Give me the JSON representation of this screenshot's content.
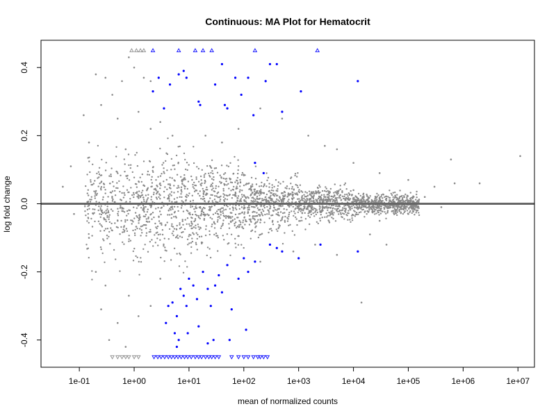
{
  "chart_data": {
    "type": "scatter",
    "title": "Continuous: MA Plot for Hematocrit",
    "xlabel": "mean of normalized counts",
    "ylabel": "log fold change",
    "x_scale": "log10",
    "xlim": [
      0.02,
      20000000
    ],
    "ylim": [
      -0.48,
      0.48
    ],
    "x_ticks": [
      {
        "value": 0.1,
        "label": "1e-01"
      },
      {
        "value": 1,
        "label": "1e+00"
      },
      {
        "value": 10,
        "label": "1e+01"
      },
      {
        "value": 100,
        "label": "1e+02"
      },
      {
        "value": 1000,
        "label": "1e+03"
      },
      {
        "value": 10000,
        "label": "1e+04"
      },
      {
        "value": 100000,
        "label": "1e+05"
      },
      {
        "value": 1000000,
        "label": "1e+06"
      },
      {
        "value": 10000000,
        "label": "1e+07"
      }
    ],
    "y_ticks": [
      {
        "value": 0.4,
        "label": "0.4"
      },
      {
        "value": 0.2,
        "label": "0.2"
      },
      {
        "value": 0.0,
        "label": "0.0"
      },
      {
        "value": -0.2,
        "label": "-0.2"
      },
      {
        "value": -0.4,
        "label": "-0.4"
      }
    ],
    "grid": false,
    "reference_line": {
      "y": 0,
      "color": "#666666"
    },
    "colors": {
      "not_significant": "#888888",
      "significant": "#0000ff"
    },
    "series": [
      {
        "role": "not_significant",
        "color": "#888888",
        "points": [
          [
            0.05,
            0.05
          ],
          [
            0.07,
            0.11
          ],
          [
            0.08,
            -0.03
          ],
          [
            0.12,
            0.26
          ],
          [
            0.15,
            0.18
          ],
          [
            0.2,
            0.38
          ],
          [
            0.25,
            0.29
          ],
          [
            0.3,
            0.37
          ],
          [
            0.4,
            0.32
          ],
          [
            0.5,
            0.25
          ],
          [
            0.6,
            0.36
          ],
          [
            0.8,
            0.43
          ],
          [
            1.0,
            0.4
          ],
          [
            1.5,
            0.37
          ],
          [
            2.0,
            0.36
          ],
          [
            0.15,
            -0.1
          ],
          [
            0.2,
            -0.2
          ],
          [
            0.25,
            -0.31
          ],
          [
            0.3,
            -0.24
          ],
          [
            0.35,
            -0.4
          ],
          [
            0.5,
            -0.35
          ],
          [
            0.7,
            -0.42
          ],
          [
            0.5,
            -0.05
          ],
          [
            0.7,
            0.16
          ],
          [
            1.2,
            0.27
          ],
          [
            2.0,
            0.22
          ],
          [
            3.0,
            0.24
          ],
          [
            5.0,
            0.2
          ],
          [
            0.8,
            -0.27
          ],
          [
            1.2,
            -0.33
          ],
          [
            2.0,
            -0.3
          ],
          [
            3.0,
            -0.22
          ],
          [
            20,
            0.2
          ],
          [
            40,
            0.18
          ],
          [
            80,
            0.22
          ],
          [
            200,
            0.28
          ],
          [
            500,
            0.25
          ],
          [
            1500,
            0.2
          ],
          [
            3000,
            0.17
          ],
          [
            5000,
            0.16
          ],
          [
            10000,
            0.12
          ],
          [
            30000,
            0.09
          ],
          [
            100000,
            0.07
          ],
          [
            300000,
            0.05
          ],
          [
            700000,
            0.06
          ],
          [
            2000000,
            0.06
          ],
          [
            11000000,
            0.14
          ],
          [
            600000,
            0.13
          ],
          [
            20000,
            -0.09
          ],
          [
            40000,
            -0.12
          ],
          [
            14000,
            -0.29
          ],
          [
            5000,
            -0.15
          ],
          [
            2000,
            -0.12
          ],
          [
            800,
            -0.14
          ],
          [
            200,
            -0.17
          ],
          [
            400000,
            -0.01
          ],
          [
            100000,
            -0.03
          ],
          [
            200000,
            0.02
          ],
          [
            30000,
            -0.05
          ],
          [
            10000,
            0.04
          ]
        ]
      },
      {
        "role": "significant",
        "color": "#0000ff",
        "points": [
          [
            2.2,
            0.33
          ],
          [
            2.8,
            0.37
          ],
          [
            3.5,
            0.28
          ],
          [
            4.5,
            0.35
          ],
          [
            6.5,
            0.38
          ],
          [
            8.0,
            0.39
          ],
          [
            9.0,
            0.37
          ],
          [
            15,
            0.3
          ],
          [
            16,
            0.29
          ],
          [
            30,
            0.35
          ],
          [
            40,
            0.41
          ],
          [
            45,
            0.29
          ],
          [
            50,
            0.28
          ],
          [
            70,
            0.37
          ],
          [
            90,
            0.32
          ],
          [
            120,
            0.37
          ],
          [
            150,
            0.26
          ],
          [
            250,
            0.36
          ],
          [
            300,
            0.41
          ],
          [
            400,
            0.41
          ],
          [
            500,
            0.27
          ],
          [
            1100,
            0.33
          ],
          [
            12000,
            0.36
          ],
          [
            160,
            0.12
          ],
          [
            230,
            0.09
          ],
          [
            3.8,
            -0.35
          ],
          [
            4.2,
            -0.3
          ],
          [
            5.0,
            -0.29
          ],
          [
            6.0,
            -0.33
          ],
          [
            7.0,
            -0.25
          ],
          [
            8.0,
            -0.27
          ],
          [
            9.0,
            -0.3
          ],
          [
            10,
            -0.22
          ],
          [
            12,
            -0.24
          ],
          [
            14,
            -0.28
          ],
          [
            18,
            -0.2
          ],
          [
            22,
            -0.25
          ],
          [
            25,
            -0.3
          ],
          [
            30,
            -0.24
          ],
          [
            35,
            -0.21
          ],
          [
            40,
            -0.26
          ],
          [
            50,
            -0.18
          ],
          [
            60,
            -0.31
          ],
          [
            80,
            -0.22
          ],
          [
            100,
            -0.16
          ],
          [
            120,
            -0.2
          ],
          [
            160,
            -0.17
          ],
          [
            300,
            -0.12
          ],
          [
            400,
            -0.13
          ],
          [
            500,
            -0.14
          ],
          [
            1000,
            -0.16
          ],
          [
            2500,
            -0.12
          ],
          [
            12000,
            -0.14
          ],
          [
            5.5,
            -0.38
          ],
          [
            6.5,
            -0.4
          ],
          [
            9.5,
            -0.38
          ],
          [
            15,
            -0.36
          ],
          [
            28,
            -0.4
          ],
          [
            55,
            -0.4
          ],
          [
            110,
            -0.37
          ],
          [
            6.0,
            -0.42
          ],
          [
            22,
            -0.41
          ]
        ]
      },
      {
        "role": "clipped_above",
        "marker": "triangle-up",
        "points": [
          [
            0.9,
            0.45,
            "#888888"
          ],
          [
            1.1,
            0.45,
            "#888888"
          ],
          [
            1.3,
            0.45,
            "#888888"
          ],
          [
            1.5,
            0.45,
            "#888888"
          ],
          [
            2.2,
            0.45,
            "#0000ff"
          ],
          [
            6.5,
            0.45,
            "#0000ff"
          ],
          [
            13,
            0.45,
            "#0000ff"
          ],
          [
            18,
            0.45,
            "#0000ff"
          ],
          [
            26,
            0.45,
            "#0000ff"
          ],
          [
            160,
            0.45,
            "#0000ff"
          ],
          [
            2200,
            0.45,
            "#0000ff"
          ]
        ]
      },
      {
        "role": "clipped_below",
        "marker": "triangle-down",
        "points": [
          [
            0.4,
            -0.45,
            "#888888"
          ],
          [
            0.5,
            -0.45,
            "#888888"
          ],
          [
            0.6,
            -0.45,
            "#888888"
          ],
          [
            0.7,
            -0.45,
            "#888888"
          ],
          [
            0.8,
            -0.45,
            "#888888"
          ],
          [
            1.0,
            -0.45,
            "#888888"
          ],
          [
            1.2,
            -0.45,
            "#888888"
          ],
          [
            2.3,
            -0.45,
            "#0000ff"
          ],
          [
            2.7,
            -0.45,
            "#0000ff"
          ],
          [
            3.1,
            -0.45,
            "#0000ff"
          ],
          [
            3.6,
            -0.45,
            "#0000ff"
          ],
          [
            4.2,
            -0.45,
            "#0000ff"
          ],
          [
            4.8,
            -0.45,
            "#0000ff"
          ],
          [
            5.5,
            -0.45,
            "#0000ff"
          ],
          [
            6.3,
            -0.45,
            "#0000ff"
          ],
          [
            7.2,
            -0.45,
            "#0000ff"
          ],
          [
            8.3,
            -0.45,
            "#0000ff"
          ],
          [
            9.5,
            -0.45,
            "#0000ff"
          ],
          [
            11,
            -0.45,
            "#0000ff"
          ],
          [
            13,
            -0.45,
            "#0000ff"
          ],
          [
            15,
            -0.45,
            "#0000ff"
          ],
          [
            17,
            -0.45,
            "#0000ff"
          ],
          [
            20,
            -0.45,
            "#0000ff"
          ],
          [
            23,
            -0.45,
            "#0000ff"
          ],
          [
            26,
            -0.45,
            "#0000ff"
          ],
          [
            30,
            -0.45,
            "#0000ff"
          ],
          [
            35,
            -0.45,
            "#0000ff"
          ],
          [
            60,
            -0.45,
            "#0000ff"
          ],
          [
            80,
            -0.45,
            "#0000ff"
          ],
          [
            100,
            -0.45,
            "#0000ff"
          ],
          [
            120,
            -0.45,
            "#0000ff"
          ],
          [
            150,
            -0.45,
            "#0000ff"
          ],
          [
            180,
            -0.45,
            "#0000ff"
          ],
          [
            200,
            -0.45,
            "#0000ff"
          ],
          [
            230,
            -0.45,
            "#0000ff"
          ],
          [
            270,
            -0.45,
            "#0000ff"
          ]
        ]
      }
    ]
  }
}
